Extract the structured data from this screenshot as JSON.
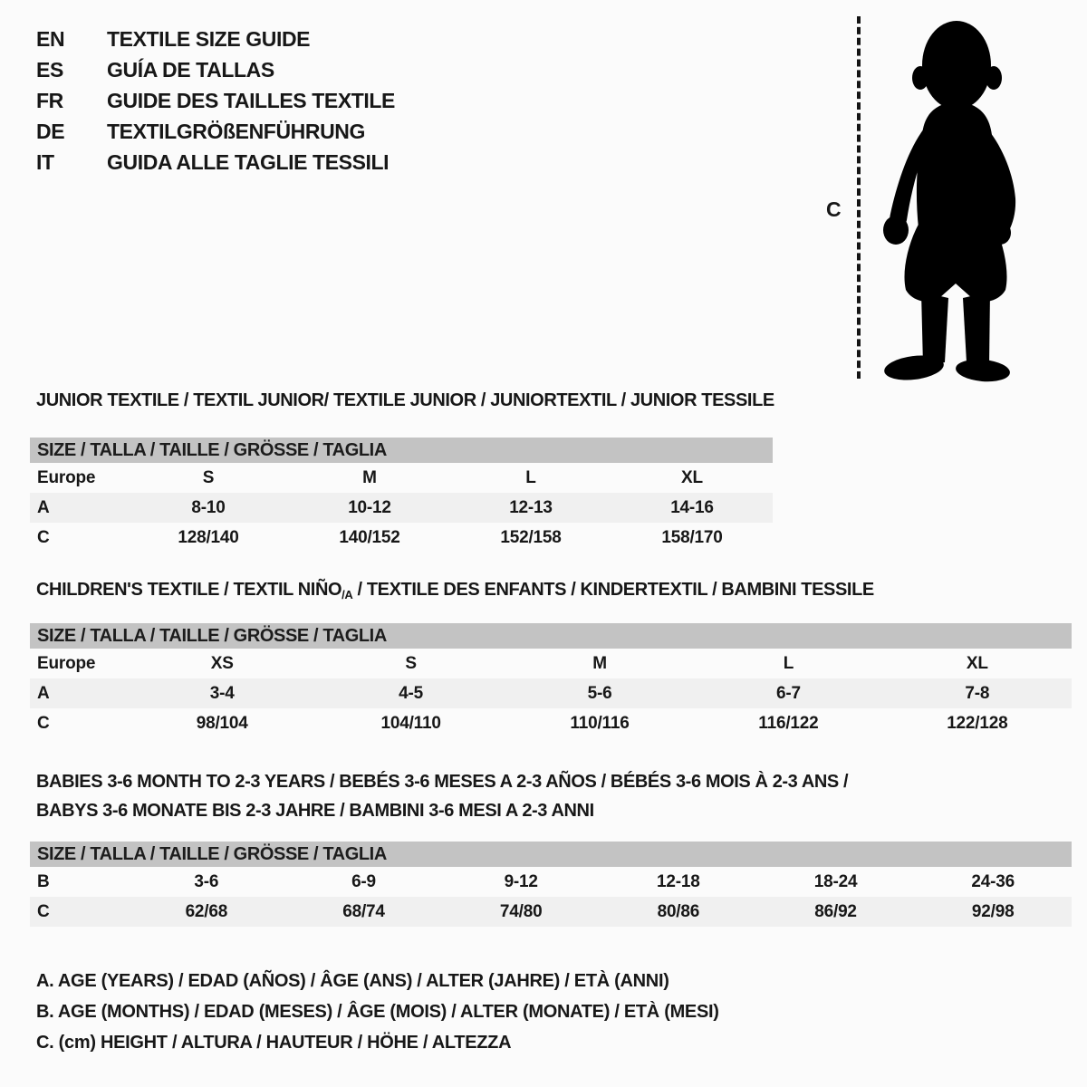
{
  "colors": {
    "bar_gray": "#c3c3c3",
    "row_alt": "#f0f0f0",
    "text": "#171717",
    "background": "#fbfbfb",
    "silhouette": "#000000"
  },
  "header": {
    "languages": [
      {
        "code": "EN",
        "label": "TEXTILE SIZE GUIDE"
      },
      {
        "code": "ES",
        "label": "GUÍA DE TALLAS"
      },
      {
        "code": "FR",
        "label": "GUIDE DES TAILLES TEXTILE"
      },
      {
        "code": "DE",
        "label": "TEXTILGRÖßENFÜHRUNG"
      },
      {
        "code": "IT",
        "label": "GUIDA ALLE TAGLIE TESSILI"
      }
    ]
  },
  "figure": {
    "height_label": "C",
    "icon": "baby-silhouette-icon"
  },
  "sections": [
    {
      "title": "JUNIOR TEXTILE / TEXTIL JUNIOR/ TEXTILE JUNIOR / JUNIORTEXTIL / JUNIOR TESSILE",
      "size_bar": "SIZE / TALLA / TAILLE / GRÖSSE / TAGLIA",
      "rows": [
        {
          "label": "Europe",
          "values": [
            "S",
            "M",
            "L",
            "XL"
          ],
          "shaded": false
        },
        {
          "label": "A",
          "values": [
            "8-10",
            "10-12",
            "12-13",
            "14-16"
          ],
          "shaded": true
        },
        {
          "label": "C",
          "values": [
            "128/140",
            "140/152",
            "152/158",
            "158/170"
          ],
          "shaded": false
        }
      ]
    },
    {
      "title_pre": "CHILDREN'S TEXTILE / TEXTIL NIÑO",
      "title_sub": "/A",
      "title_post": " / TEXTILE DES ENFANTS / KINDERTEXTIL / BAMBINI TESSILE",
      "size_bar": "SIZE / TALLA / TAILLE / GRÖSSE / TAGLIA",
      "rows": [
        {
          "label": "Europe",
          "values": [
            "XS",
            "S",
            "M",
            "L",
            "XL"
          ],
          "shaded": false
        },
        {
          "label": "A",
          "values": [
            "3-4",
            "4-5",
            "5-6",
            "6-7",
            "7-8"
          ],
          "shaded": true
        },
        {
          "label": "C",
          "values": [
            "98/104",
            "104/110",
            "110/116",
            "116/122",
            "122/128"
          ],
          "shaded": false
        }
      ]
    },
    {
      "title_line1": "BABIES 3-6 MONTH TO 2-3 YEARS / BEBÉS 3-6 MESES A 2-3 AÑOS / BÉBÉS 3-6 MOIS À 2-3 ANS /",
      "title_line2": "BABYS 3-6 MONATE BIS 2-3 JAHRE / BAMBINI 3-6 MESI A 2-3 ANNI",
      "size_bar": "SIZE / TALLA / TAILLE / GRÖSSE / TAGLIA",
      "rows": [
        {
          "label": "B",
          "values": [
            "3-6",
            "6-9",
            "9-12",
            "12-18",
            "18-24",
            "24-36"
          ],
          "shaded": false
        },
        {
          "label": "C",
          "values": [
            "62/68",
            "68/74",
            "74/80",
            "80/86",
            "86/92",
            "92/98"
          ],
          "shaded": true
        }
      ]
    }
  ],
  "legend": [
    "A. AGE (YEARS) / EDAD (AÑOS) / ÂGE (ANS) / ALTER (JAHRE) / ETÀ (ANNI)",
    "B. AGE (MONTHS) / EDAD (MESES) / ÂGE (MOIS) / ALTER (MONATE) / ETÀ (MESI)",
    "C. (cm) HEIGHT / ALTURA / HAUTEUR / HÖHE / ALTEZZA"
  ]
}
